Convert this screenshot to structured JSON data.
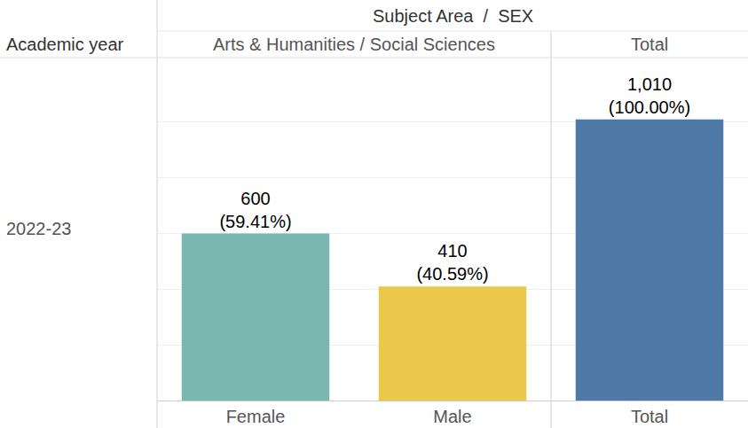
{
  "chart_data": {
    "type": "bar",
    "title": "Subject Area  /  SEX",
    "row_header": "Academic year",
    "row_label": "2022-23",
    "groups": [
      {
        "label": "Arts & Humanities / Social Sciences",
        "categories": [
          "Female",
          "Male"
        ]
      },
      {
        "label": "Total",
        "categories": [
          "Total"
        ]
      }
    ],
    "categories": [
      "Female",
      "Male",
      "Total"
    ],
    "values": [
      600,
      410,
      1010
    ],
    "value_labels": [
      "600",
      "410",
      "1,010"
    ],
    "share_labels": [
      "(59.41%)",
      "(40.59%)",
      "(100.00%)"
    ],
    "colors": [
      "#79b6b0",
      "#ebc74a",
      "#4e79a7"
    ],
    "ylim": [
      0,
      1200
    ],
    "yticks": [
      0,
      200,
      400,
      600,
      800,
      1000,
      1200
    ],
    "grid": true,
    "data_labels": true,
    "tick_labels": "x"
  }
}
